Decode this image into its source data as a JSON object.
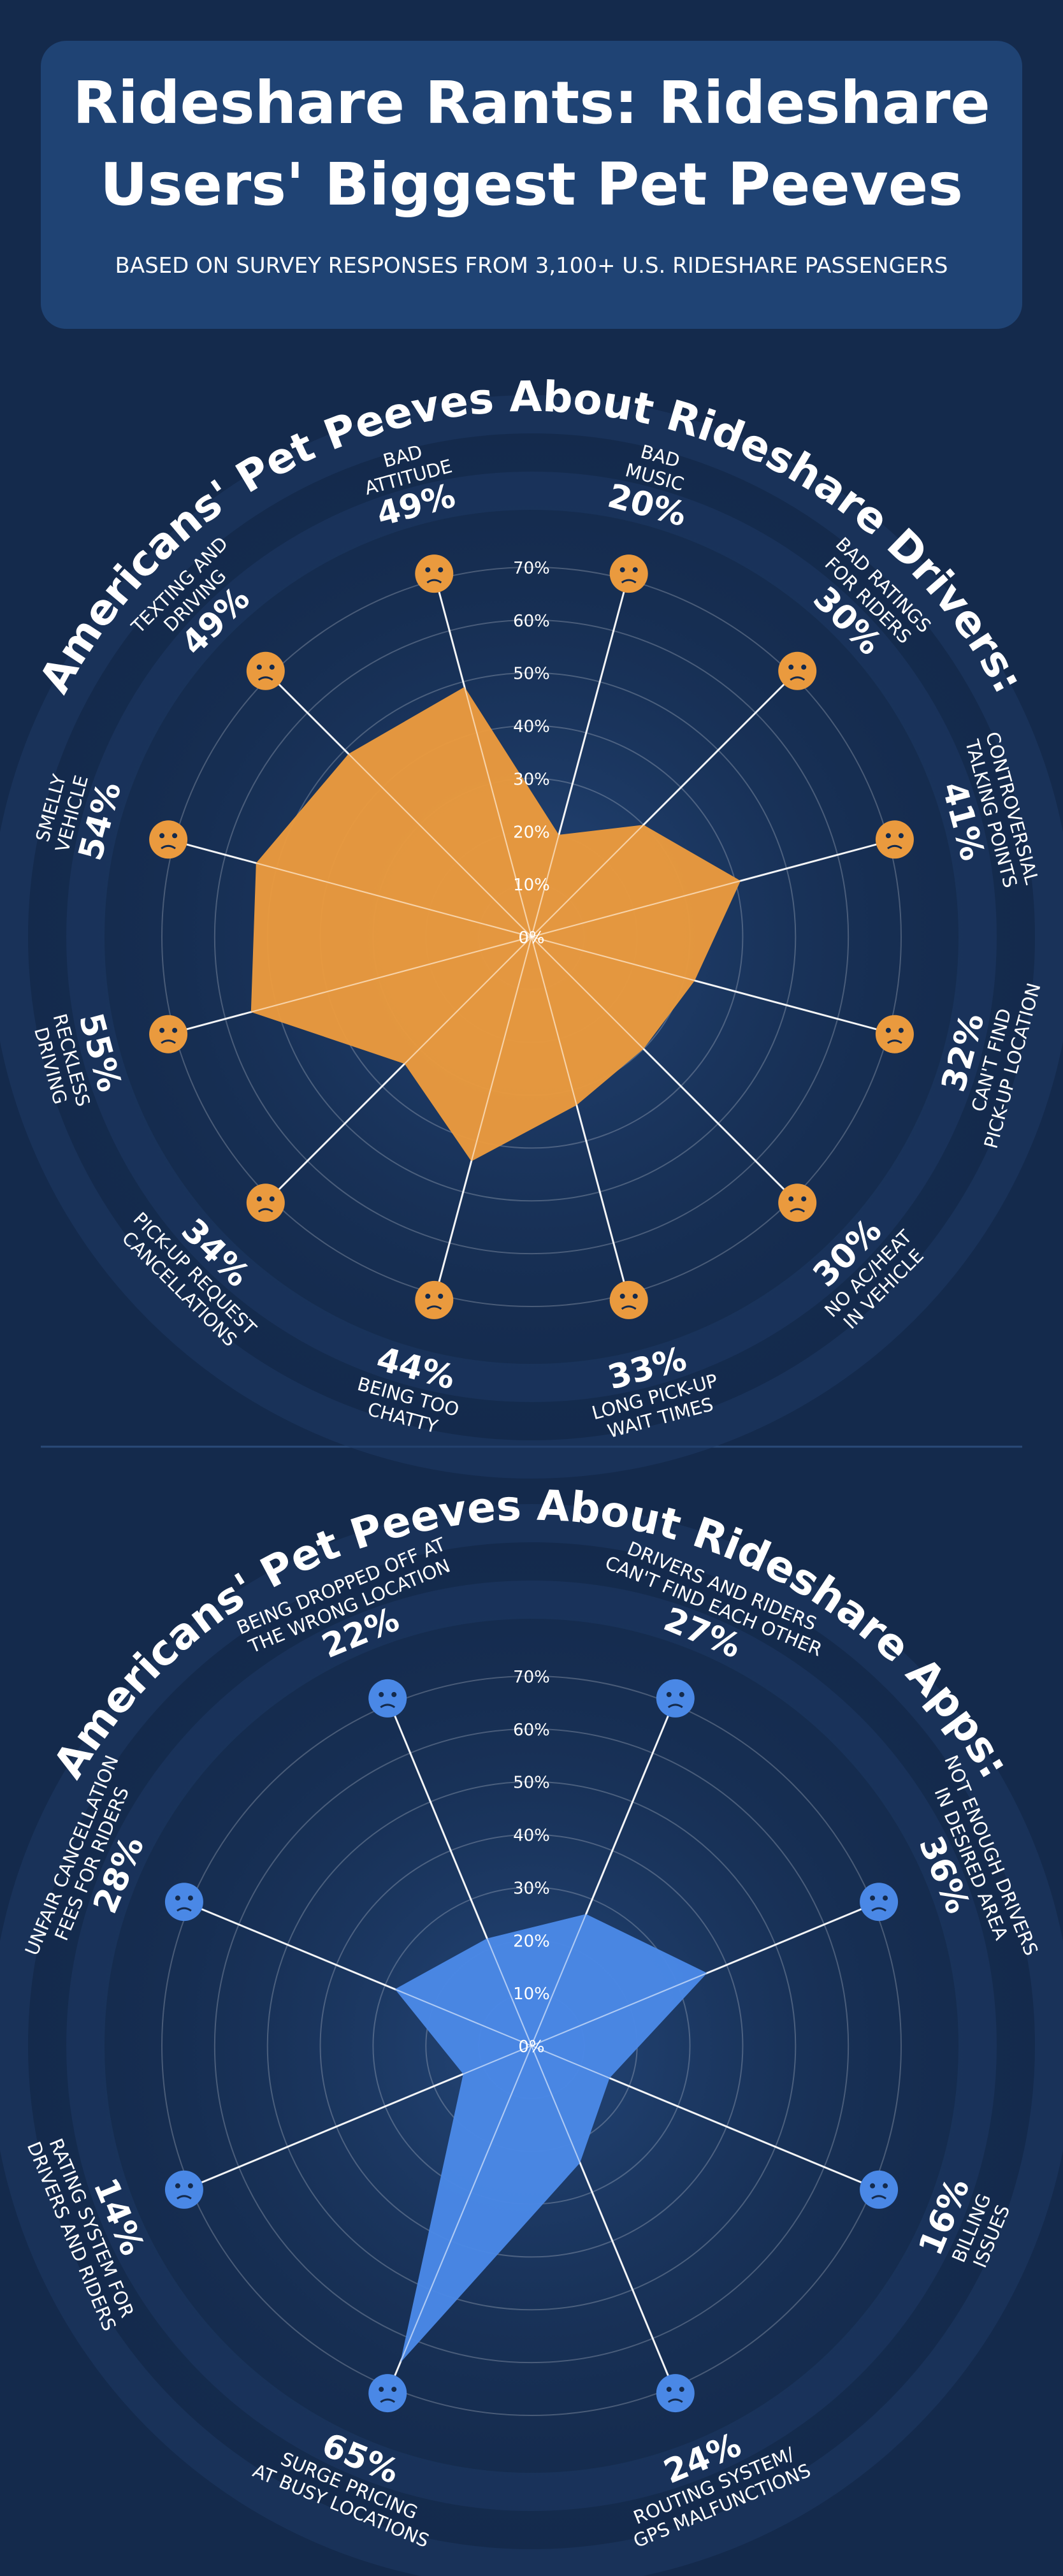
{
  "header": {
    "title": "Rideshare Rants: Rideshare\nUsers' Biggest Pet Peeves",
    "subtitle": "BASED ON SURVEY RESPONSES FROM 3,100+ U.S. RIDESHARE PASSENGERS"
  },
  "chart_data": [
    {
      "type": "radar",
      "title": "Americans' Pet Peeves About Rideshare Drivers:",
      "color": "#ea9a3e",
      "categories": [
        "BAD\nATTITUDE",
        "BAD\nMUSIC",
        "BAD RATINGS\nFOR RIDERS",
        "CONTROVERSIAL\nTALKING POINTS",
        "CAN'T FIND\nPICK-UP LOCATION",
        "NO AC/HEAT\nIN VEHICLE",
        "LONG PICK-UP\nWAIT TIMES",
        "BEING TOO\nCHATTY",
        "PICK-UP REQUEST\nCANCELLATIONS",
        "RECKLESS\nDRIVING",
        "SMELLY\nVEHICLE",
        "TEXTING AND\nDRIVING"
      ],
      "values": [
        49,
        20,
        30,
        41,
        32,
        30,
        33,
        44,
        34,
        55,
        54,
        49
      ],
      "value_labels": [
        "49%",
        "20%",
        "30%",
        "41%",
        "32%",
        "30%",
        "33%",
        "44%",
        "34%",
        "55%",
        "54%",
        "49%"
      ],
      "rlim": [
        0,
        70
      ],
      "rticks": [
        {
          "value": 0,
          "label": "0%"
        },
        {
          "value": 10,
          "label": "10%"
        },
        {
          "value": 20,
          "label": "20%"
        },
        {
          "value": 30,
          "label": "30%"
        },
        {
          "value": 40,
          "label": "40%"
        },
        {
          "value": 50,
          "label": "50%"
        },
        {
          "value": 60,
          "label": "60%"
        },
        {
          "value": 70,
          "label": "70%"
        }
      ],
      "grid": true
    },
    {
      "type": "radar",
      "title": "Americans' Pet Peeves About Rideshare Apps:",
      "color": "#4a88e6",
      "categories": [
        "BEING DROPPED OFF AT\nTHE WRONG LOCATION",
        "DRIVERS AND RIDERS\nCAN'T FIND EACH OTHER",
        "NOT ENOUGH DRIVERS\nIN DESIRED AREA",
        "BILLING\nISSUES",
        "ROUTING SYSTEM/\nGPS MALFUNCTIONS",
        "SURGE PRICING\nAT BUSY LOCATIONS",
        "RATING SYSTEM FOR\nDRIVERS AND RIDERS",
        "UNFAIR CANCELLATION\nFEES FOR RIDERS"
      ],
      "values": [
        22,
        27,
        36,
        16,
        24,
        65,
        14,
        28
      ],
      "value_labels": [
        "22%",
        "27%",
        "36%",
        "16%",
        "24%",
        "65%",
        "14%",
        "28%"
      ],
      "rlim": [
        0,
        70
      ],
      "rticks": [
        {
          "value": 0,
          "label": "0%"
        },
        {
          "value": 10,
          "label": "10%"
        },
        {
          "value": 20,
          "label": "20%"
        },
        {
          "value": 30,
          "label": "30%"
        },
        {
          "value": 40,
          "label": "40%"
        },
        {
          "value": 50,
          "label": "50%"
        },
        {
          "value": 60,
          "label": "60%"
        },
        {
          "value": 70,
          "label": "70%"
        }
      ],
      "grid": true
    }
  ]
}
